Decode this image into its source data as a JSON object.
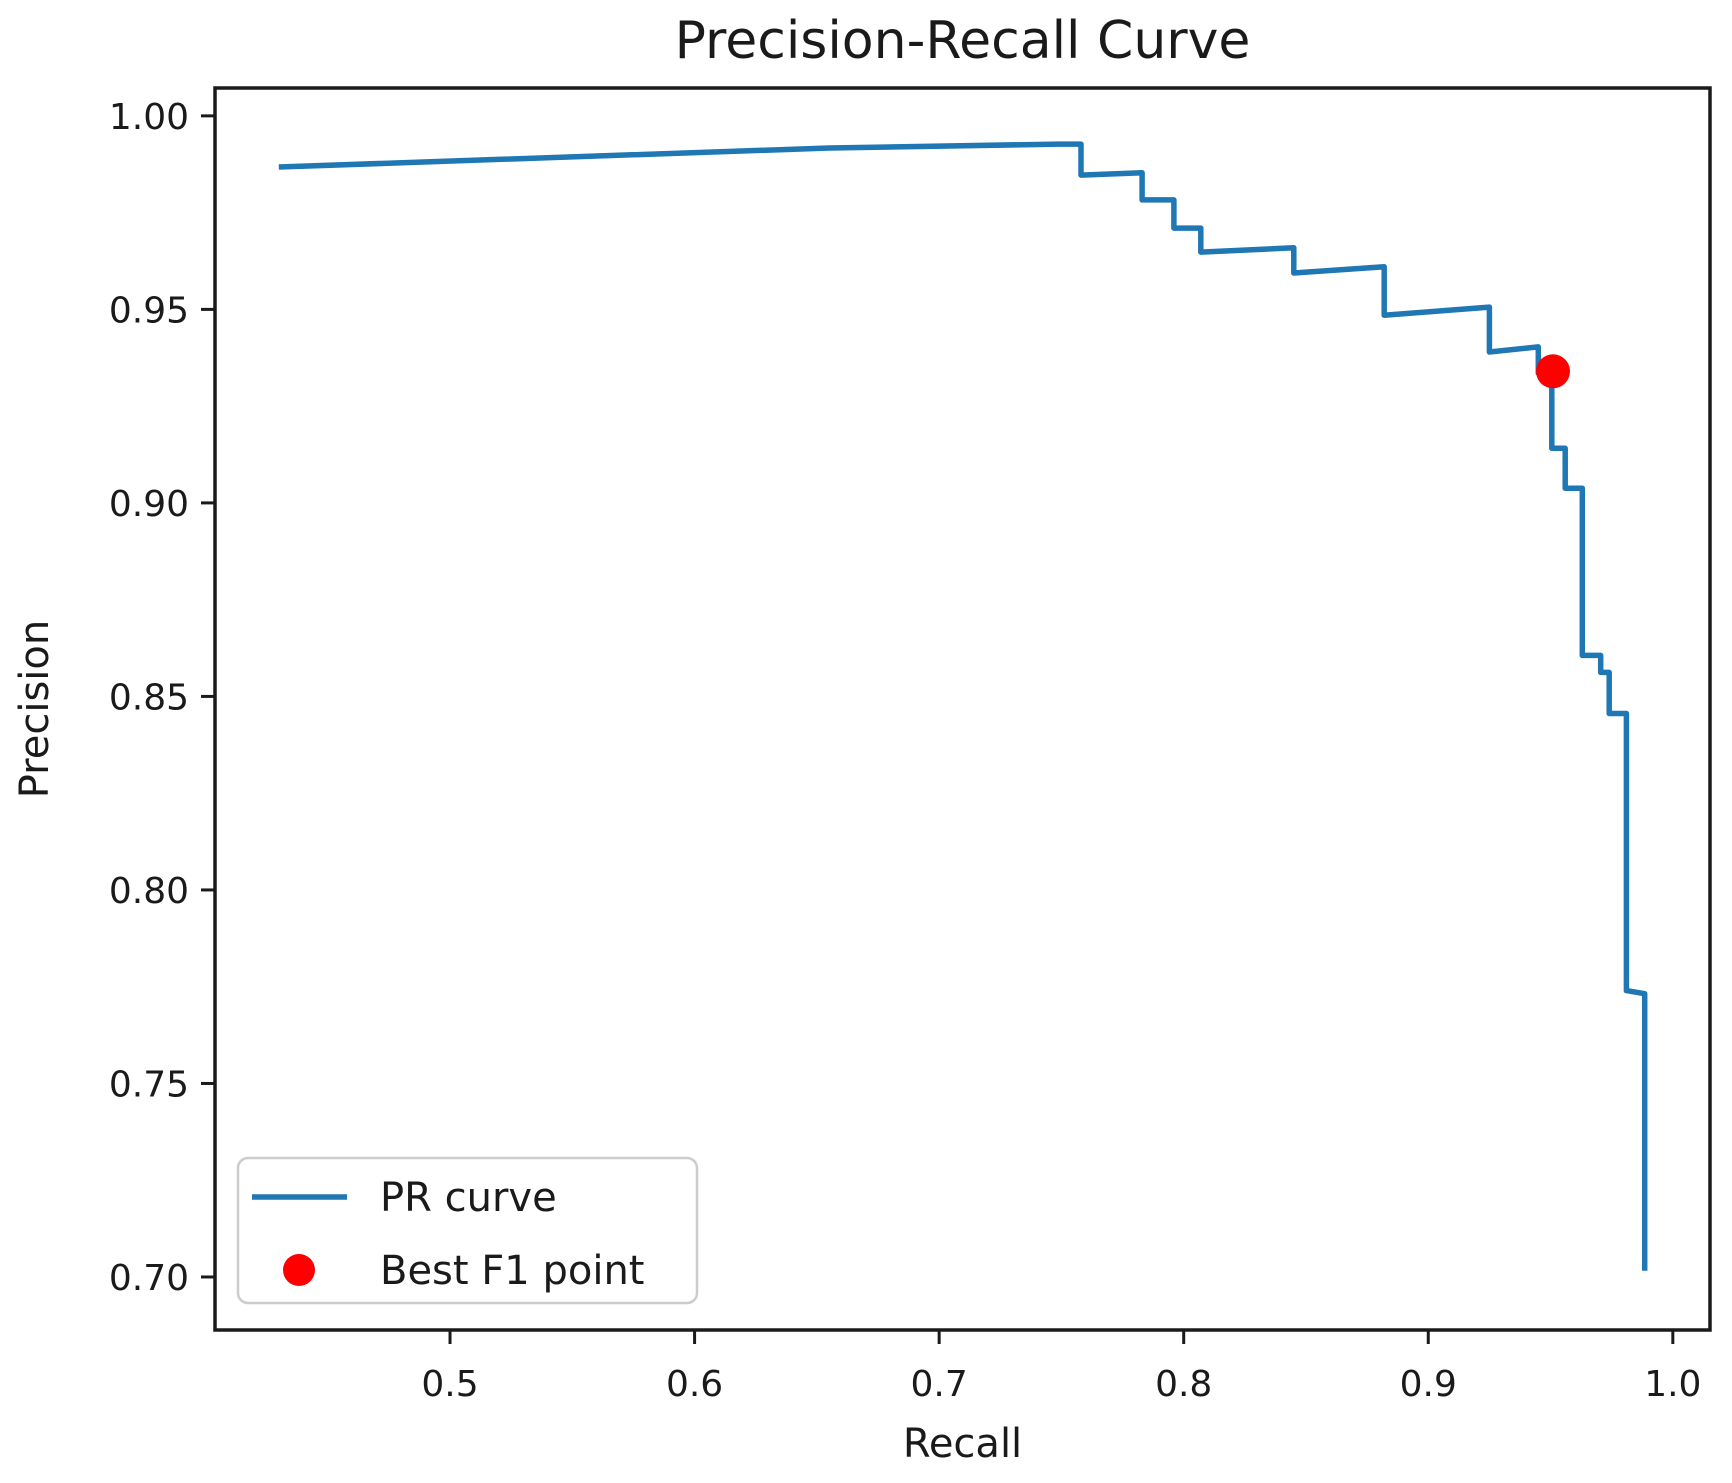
{
  "chart_data": {
    "type": "line",
    "title": "Precision-Recall Curve",
    "xlabel": "Recall",
    "ylabel": "Precision",
    "xlim": [
      0.4039,
      1.0152
    ],
    "ylim": [
      0.6863,
      1.0072
    ],
    "grid": false,
    "xticks": [
      0.5,
      0.6,
      0.7,
      0.8,
      0.9,
      1.0
    ],
    "xtick_labels": [
      "0.5",
      "0.6",
      "0.7",
      "0.8",
      "0.9",
      "1.0"
    ],
    "yticks": [
      0.7,
      0.75,
      0.8,
      0.85,
      0.9,
      0.95,
      1.0
    ],
    "ytick_labels": [
      "0.70",
      "0.75",
      "0.80",
      "0.85",
      "0.90",
      "0.95",
      "1.00"
    ],
    "legend": {
      "position": "lower left",
      "entries": [
        {
          "label": "PR curve",
          "marker": "line",
          "color": "#1f77b4"
        },
        {
          "label": "Best F1 point",
          "marker": "dot",
          "color": "#ff0000"
        }
      ]
    },
    "series": [
      {
        "name": "PR curve",
        "color": "#1f77b4",
        "points": [
          [
            0.43,
            0.9868
          ],
          [
            0.655,
            0.9917
          ],
          [
            0.749,
            0.9927
          ],
          [
            0.758,
            0.9927
          ],
          [
            0.758,
            0.9847
          ],
          [
            0.783,
            0.9853
          ],
          [
            0.783,
            0.9783
          ],
          [
            0.796,
            0.9783
          ],
          [
            0.796,
            0.971
          ],
          [
            0.807,
            0.971
          ],
          [
            0.807,
            0.9648
          ],
          [
            0.845,
            0.9659
          ],
          [
            0.845,
            0.9594
          ],
          [
            0.882,
            0.961
          ],
          [
            0.882,
            0.9485
          ],
          [
            0.925,
            0.9506
          ],
          [
            0.925,
            0.939
          ],
          [
            0.945,
            0.9403
          ],
          [
            0.945,
            0.9335
          ],
          [
            0.9505,
            0.9335
          ],
          [
            0.9505,
            0.9141
          ],
          [
            0.956,
            0.9141
          ],
          [
            0.956,
            0.9038
          ],
          [
            0.963,
            0.9038
          ],
          [
            0.963,
            0.8606
          ],
          [
            0.9705,
            0.8606
          ],
          [
            0.9705,
            0.8562
          ],
          [
            0.974,
            0.8562
          ],
          [
            0.974,
            0.8456
          ],
          [
            0.981,
            0.8456
          ],
          [
            0.981,
            0.774
          ],
          [
            0.9885,
            0.7732
          ],
          [
            0.9885,
            0.7016
          ]
        ]
      },
      {
        "name": "Best F1 point",
        "color": "#ff0000",
        "point": [
          0.951,
          0.934
        ]
      }
    ],
    "styles": {
      "line_width": 5.5,
      "marker_radius": 17,
      "spine_color": "#1a1a1a",
      "background": "#ffffff",
      "legend_border": "#cccccc"
    }
  }
}
